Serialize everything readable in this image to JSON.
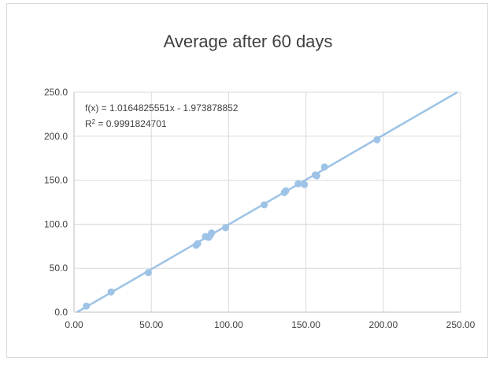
{
  "chart_data": {
    "type": "scatter",
    "title": "Average after 60 days",
    "xlabel": "",
    "ylabel": "",
    "xlim": [
      0,
      250
    ],
    "ylim": [
      0,
      250
    ],
    "x_ticks": [
      "0.00",
      "50.00",
      "100.00",
      "150.00",
      "200.00",
      "250.00"
    ],
    "y_ticks": [
      "0.0",
      "50.0",
      "100.0",
      "150.0",
      "200.0",
      "250.0"
    ],
    "grid": true,
    "legend": "none",
    "marker_color": "#9dc3e6",
    "trendline_color": "#9dc3e6",
    "trendline": {
      "slope": 1.0164825551,
      "intercept": -1.973878852,
      "equation": "f(x) = 1.0164825551x - 1.973878852",
      "r2_prefix": "R",
      "r2_sup": "2",
      "r2_value": " = 0.9991824701"
    },
    "points": [
      {
        "x": 8,
        "y": 7
      },
      {
        "x": 24,
        "y": 23
      },
      {
        "x": 48,
        "y": 45
      },
      {
        "x": 79,
        "y": 76
      },
      {
        "x": 80,
        "y": 78
      },
      {
        "x": 85,
        "y": 86
      },
      {
        "x": 87,
        "y": 85
      },
      {
        "x": 88,
        "y": 87
      },
      {
        "x": 89,
        "y": 90
      },
      {
        "x": 98,
        "y": 96
      },
      {
        "x": 123,
        "y": 122
      },
      {
        "x": 136,
        "y": 136
      },
      {
        "x": 137,
        "y": 138
      },
      {
        "x": 145,
        "y": 146
      },
      {
        "x": 149,
        "y": 145
      },
      {
        "x": 156,
        "y": 156
      },
      {
        "x": 157,
        "y": 155
      },
      {
        "x": 162,
        "y": 165
      },
      {
        "x": 196,
        "y": 196
      }
    ]
  }
}
